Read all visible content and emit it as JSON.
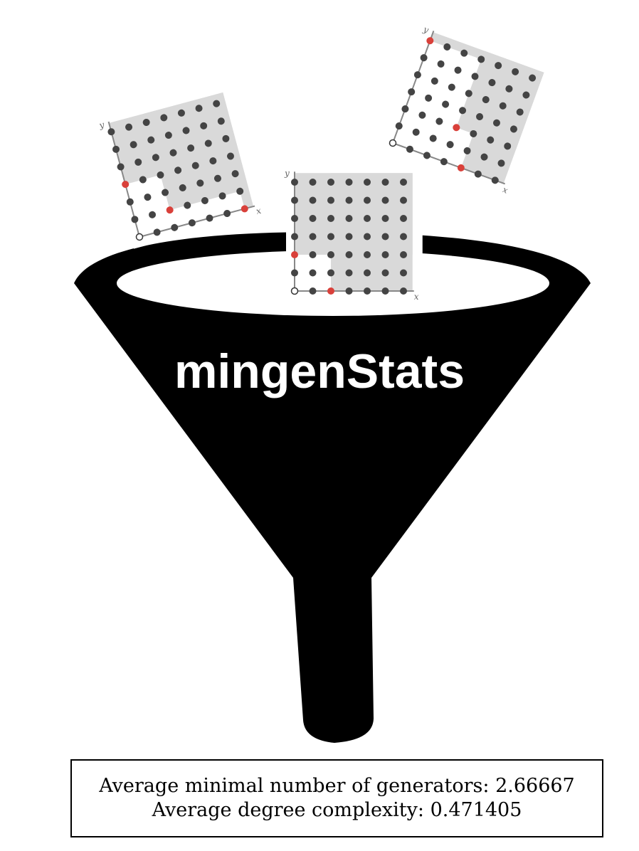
{
  "title": "mingenStats",
  "stats": {
    "line1": "Average minimal number of generators: 2.66667",
    "line2": "Average degree complexity: 0.471405"
  },
  "icons": [
    "funnel-icon"
  ],
  "colors": {
    "funnel": "#000000",
    "shaded_region": "#d9d9d9",
    "dot": "#444444",
    "generator_dot": "#d9403a",
    "axis": "#888888"
  },
  "lattice_plots": [
    {
      "name": "left",
      "axis_labels": [
        "x",
        "y"
      ],
      "generators": [
        [
          0,
          3
        ],
        [
          2,
          1
        ],
        [
          6,
          0
        ]
      ],
      "rotation_deg": -15
    },
    {
      "name": "center",
      "axis_labels": [
        "x",
        "y"
      ],
      "generators": [
        [
          0,
          2
        ],
        [
          2,
          0
        ]
      ],
      "rotation_deg": 0
    },
    {
      "name": "right",
      "axis_labels": [
        "x",
        "y"
      ],
      "generators": [
        [
          0,
          6
        ],
        [
          3,
          2
        ],
        [
          4,
          0
        ]
      ],
      "rotation_deg": 20
    }
  ]
}
